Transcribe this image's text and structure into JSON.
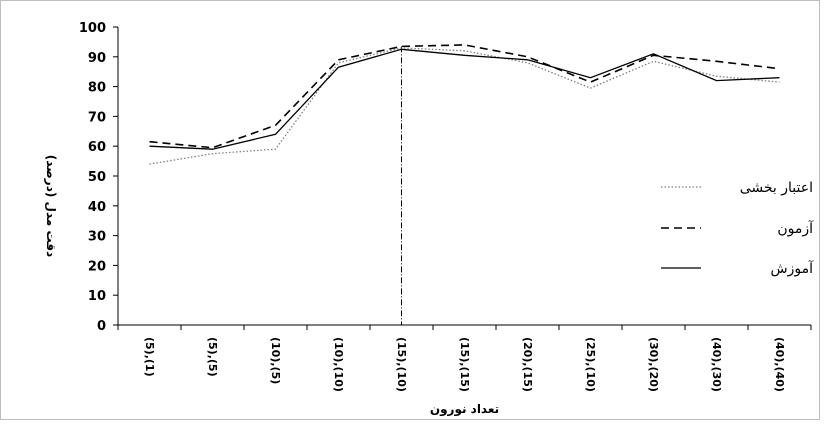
{
  "chart_data": {
    "type": "line",
    "title": "",
    "xlabel": "تعداد نورون",
    "ylabel": "دقت مدل (درصد)",
    "categories": [
      "(5),(1)",
      "(5),(5)",
      "(10),(5)",
      "(10),(10)",
      "(15),(10)",
      "(15),(15)",
      "(20),(15)",
      "(25),(10)",
      "(30),(20)",
      "(40),(30)",
      "(40),(40)"
    ],
    "ylim": [
      0,
      100
    ],
    "yticks": [
      0,
      10,
      20,
      30,
      40,
      50,
      60,
      70,
      80,
      90,
      100
    ],
    "grid": false,
    "legend_position": "right",
    "highlight_category": "(15),(10)",
    "series": [
      {
        "name": "اعتبار بخشی",
        "style": "dotted",
        "color": "#7f7f7f",
        "values": [
          54,
          57.5,
          59,
          88,
          93,
          92,
          88,
          79.5,
          88.5,
          83.5,
          81.5
        ]
      },
      {
        "name": "آزمون",
        "style": "dashed",
        "color": "#000000",
        "values": [
          61.5,
          59.5,
          67,
          89,
          93.5,
          94,
          90,
          81.5,
          90.5,
          88.5,
          86
        ]
      },
      {
        "name": "آموزش",
        "style": "solid",
        "color": "#000000",
        "values": [
          60,
          59,
          64,
          86.5,
          92.5,
          90.5,
          89,
          83,
          91,
          82,
          83
        ]
      }
    ]
  }
}
